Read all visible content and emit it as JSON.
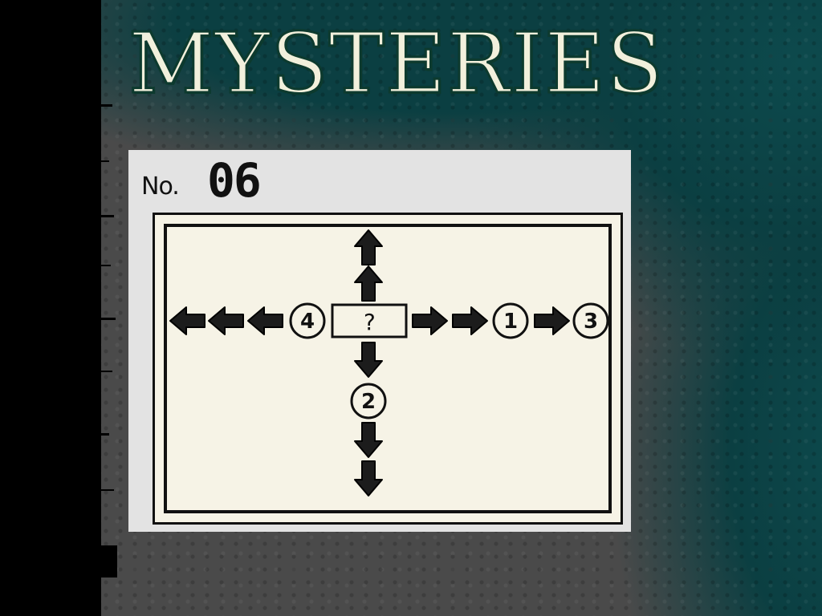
{
  "screen": {
    "title": "MYSTERIES"
  },
  "panel": {
    "number_label": "No.",
    "number_value": "06"
  },
  "puzzle": {
    "center_label": "?",
    "markers": [
      "1",
      "2",
      "3",
      "4"
    ],
    "colors": {
      "background_teal": "#0b3f42",
      "background_gray": "#4a4a4a",
      "panel": "#e3e3e3",
      "paper": "#f6f3e6",
      "ink": "#111111"
    }
  }
}
